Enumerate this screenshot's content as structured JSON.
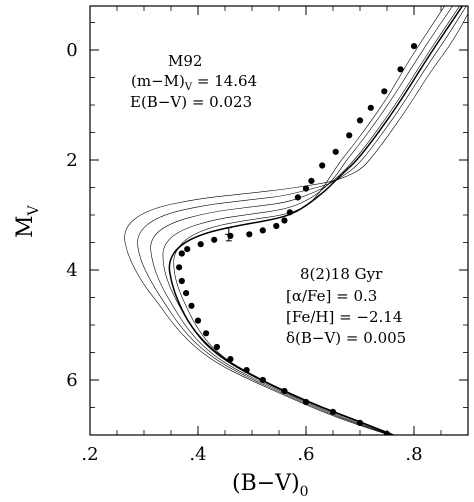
{
  "chart_data": {
    "type": "scatter",
    "xlabel": "(B−V)",
    "xlabel_sub": "0",
    "ylabel": "M",
    "ylabel_sub": "V",
    "xlim": [
      0.2,
      0.9
    ],
    "ylim": [
      7.0,
      -0.8
    ],
    "y_inverted": true,
    "x_ticks": [
      0.2,
      0.4,
      0.6,
      0.8
    ],
    "x_tick_labels": [
      ".2",
      ".4",
      ".6",
      ".8"
    ],
    "y_ticks": [
      0,
      2,
      4,
      6
    ],
    "y_tick_labels": [
      "0",
      "2",
      "4",
      "6"
    ],
    "grid": false,
    "annotations_left": [
      "M92",
      "(m−M)",
      "V",
      " = 14.64",
      "E(B−V) = 0.023"
    ],
    "annotations_right": [
      "8(2)18 Gyr",
      "[α/Fe] = 0.3",
      "[Fe/H] = −2.14",
      "δ(B−V) = 0.005"
    ],
    "series": [
      {
        "kind": "points",
        "values": [
          [
            0.8,
            -0.07
          ],
          [
            0.775,
            0.35
          ],
          [
            0.745,
            0.75
          ],
          [
            0.72,
            1.05
          ],
          [
            0.7,
            1.28
          ],
          [
            0.68,
            1.55
          ],
          [
            0.655,
            1.85
          ],
          [
            0.63,
            2.1
          ],
          [
            0.61,
            2.38
          ],
          [
            0.6,
            2.52
          ],
          [
            0.585,
            2.68
          ],
          [
            0.57,
            2.95
          ],
          [
            0.56,
            3.1
          ],
          [
            0.545,
            3.2
          ],
          [
            0.52,
            3.28
          ],
          [
            0.495,
            3.35
          ],
          [
            0.46,
            3.38
          ],
          [
            0.43,
            3.45
          ],
          [
            0.405,
            3.53
          ],
          [
            0.38,
            3.62
          ],
          [
            0.37,
            3.7
          ],
          [
            0.365,
            3.95
          ],
          [
            0.37,
            4.2
          ],
          [
            0.378,
            4.42
          ],
          [
            0.388,
            4.65
          ],
          [
            0.4,
            4.92
          ],
          [
            0.415,
            5.15
          ],
          [
            0.435,
            5.4
          ],
          [
            0.46,
            5.62
          ],
          [
            0.49,
            5.82
          ],
          [
            0.52,
            6.0
          ],
          [
            0.56,
            6.2
          ],
          [
            0.6,
            6.4
          ],
          [
            0.65,
            6.58
          ],
          [
            0.7,
            6.78
          ],
          [
            0.75,
            6.98
          ]
        ]
      }
    ],
    "error_bar": {
      "x": 0.457,
      "y": 3.35,
      "xerr": 0.007,
      "yerr": 0.12
    },
    "isochrones": [
      {
        "values": [
          [
            0.86,
            -0.85
          ],
          [
            0.83,
            -0.4
          ],
          [
            0.79,
            0.2
          ],
          [
            0.755,
            0.8
          ],
          [
            0.72,
            1.3
          ],
          [
            0.69,
            1.7
          ],
          [
            0.665,
            2.0
          ],
          [
            0.645,
            2.3
          ],
          [
            0.625,
            2.6
          ],
          [
            0.6,
            2.85
          ],
          [
            0.56,
            3.0
          ],
          [
            0.5,
            3.08
          ],
          [
            0.43,
            3.2
          ],
          [
            0.38,
            3.4
          ],
          [
            0.355,
            3.7
          ],
          [
            0.355,
            4.0
          ],
          [
            0.362,
            4.3
          ],
          [
            0.375,
            4.6
          ],
          [
            0.395,
            5.0
          ],
          [
            0.42,
            5.35
          ],
          [
            0.455,
            5.65
          ],
          [
            0.5,
            5.9
          ],
          [
            0.56,
            6.2
          ],
          [
            0.63,
            6.5
          ],
          [
            0.7,
            6.75
          ],
          [
            0.77,
            7.05
          ]
        ]
      },
      {
        "values": [
          [
            0.875,
            -0.85
          ],
          [
            0.84,
            -0.35
          ],
          [
            0.8,
            0.25
          ],
          [
            0.765,
            0.8
          ],
          [
            0.73,
            1.3
          ],
          [
            0.7,
            1.7
          ],
          [
            0.675,
            2.0
          ],
          [
            0.655,
            2.3
          ],
          [
            0.63,
            2.55
          ],
          [
            0.6,
            2.75
          ],
          [
            0.56,
            2.9
          ],
          [
            0.5,
            2.98
          ],
          [
            0.43,
            3.08
          ],
          [
            0.365,
            3.28
          ],
          [
            0.335,
            3.55
          ],
          [
            0.335,
            3.9
          ],
          [
            0.345,
            4.25
          ],
          [
            0.362,
            4.6
          ],
          [
            0.385,
            5.0
          ],
          [
            0.412,
            5.35
          ],
          [
            0.45,
            5.65
          ],
          [
            0.498,
            5.92
          ],
          [
            0.56,
            6.22
          ],
          [
            0.63,
            6.52
          ],
          [
            0.7,
            6.77
          ],
          [
            0.77,
            7.05
          ]
        ]
      },
      {
        "values": [
          [
            0.888,
            -0.85
          ],
          [
            0.85,
            -0.3
          ],
          [
            0.81,
            0.3
          ],
          [
            0.775,
            0.85
          ],
          [
            0.74,
            1.35
          ],
          [
            0.71,
            1.75
          ],
          [
            0.685,
            2.05
          ],
          [
            0.66,
            2.3
          ],
          [
            0.635,
            2.5
          ],
          [
            0.6,
            2.65
          ],
          [
            0.56,
            2.78
          ],
          [
            0.5,
            2.85
          ],
          [
            0.42,
            2.95
          ],
          [
            0.345,
            3.15
          ],
          [
            0.31,
            3.45
          ],
          [
            0.315,
            3.85
          ],
          [
            0.33,
            4.25
          ],
          [
            0.35,
            4.6
          ],
          [
            0.375,
            5.0
          ],
          [
            0.405,
            5.35
          ],
          [
            0.445,
            5.67
          ],
          [
            0.496,
            5.94
          ],
          [
            0.56,
            6.24
          ],
          [
            0.63,
            6.54
          ],
          [
            0.7,
            6.79
          ],
          [
            0.77,
            7.05
          ]
        ]
      },
      {
        "values": [
          [
            0.9,
            -0.85
          ],
          [
            0.862,
            -0.25
          ],
          [
            0.82,
            0.35
          ],
          [
            0.785,
            0.9
          ],
          [
            0.75,
            1.4
          ],
          [
            0.72,
            1.8
          ],
          [
            0.695,
            2.1
          ],
          [
            0.668,
            2.3
          ],
          [
            0.64,
            2.45
          ],
          [
            0.6,
            2.55
          ],
          [
            0.56,
            2.65
          ],
          [
            0.5,
            2.72
          ],
          [
            0.41,
            2.82
          ],
          [
            0.325,
            3.02
          ],
          [
            0.285,
            3.35
          ],
          [
            0.292,
            3.8
          ],
          [
            0.315,
            4.25
          ],
          [
            0.338,
            4.6
          ],
          [
            0.365,
            5.0
          ],
          [
            0.398,
            5.36
          ],
          [
            0.44,
            5.68
          ],
          [
            0.494,
            5.96
          ],
          [
            0.56,
            6.26
          ],
          [
            0.63,
            6.56
          ],
          [
            0.7,
            6.81
          ],
          [
            0.77,
            7.05
          ]
        ]
      },
      {
        "values": [
          [
            0.91,
            -0.85
          ],
          [
            0.875,
            -0.2
          ],
          [
            0.83,
            0.4
          ],
          [
            0.795,
            0.95
          ],
          [
            0.76,
            1.45
          ],
          [
            0.73,
            1.85
          ],
          [
            0.705,
            2.15
          ],
          [
            0.676,
            2.3
          ],
          [
            0.645,
            2.4
          ],
          [
            0.6,
            2.47
          ],
          [
            0.56,
            2.53
          ],
          [
            0.5,
            2.6
          ],
          [
            0.4,
            2.7
          ],
          [
            0.305,
            2.9
          ],
          [
            0.26,
            3.25
          ],
          [
            0.27,
            3.75
          ],
          [
            0.298,
            4.25
          ],
          [
            0.326,
            4.6
          ],
          [
            0.355,
            5.0
          ],
          [
            0.39,
            5.37
          ],
          [
            0.435,
            5.7
          ],
          [
            0.492,
            5.98
          ],
          [
            0.56,
            6.28
          ],
          [
            0.63,
            6.58
          ],
          [
            0.7,
            6.83
          ],
          [
            0.77,
            7.05
          ]
        ]
      },
      {
        "values": [
          [
            0.893,
            -0.85
          ],
          [
            0.855,
            -0.3
          ],
          [
            0.815,
            0.3
          ],
          [
            0.78,
            0.85
          ],
          [
            0.745,
            1.35
          ],
          [
            0.715,
            1.75
          ],
          [
            0.69,
            2.05
          ],
          [
            0.662,
            2.3
          ],
          [
            0.637,
            2.55
          ],
          [
            0.605,
            2.8
          ],
          [
            0.575,
            2.98
          ],
          [
            0.54,
            3.08
          ],
          [
            0.48,
            3.18
          ],
          [
            0.41,
            3.33
          ],
          [
            0.365,
            3.55
          ],
          [
            0.345,
            3.85
          ],
          [
            0.35,
            4.2
          ],
          [
            0.362,
            4.55
          ],
          [
            0.382,
            4.95
          ],
          [
            0.41,
            5.3
          ],
          [
            0.448,
            5.62
          ],
          [
            0.497,
            5.9
          ],
          [
            0.56,
            6.2
          ],
          [
            0.63,
            6.5
          ],
          [
            0.7,
            6.76
          ],
          [
            0.775,
            7.05
          ]
        ]
      }
    ]
  }
}
